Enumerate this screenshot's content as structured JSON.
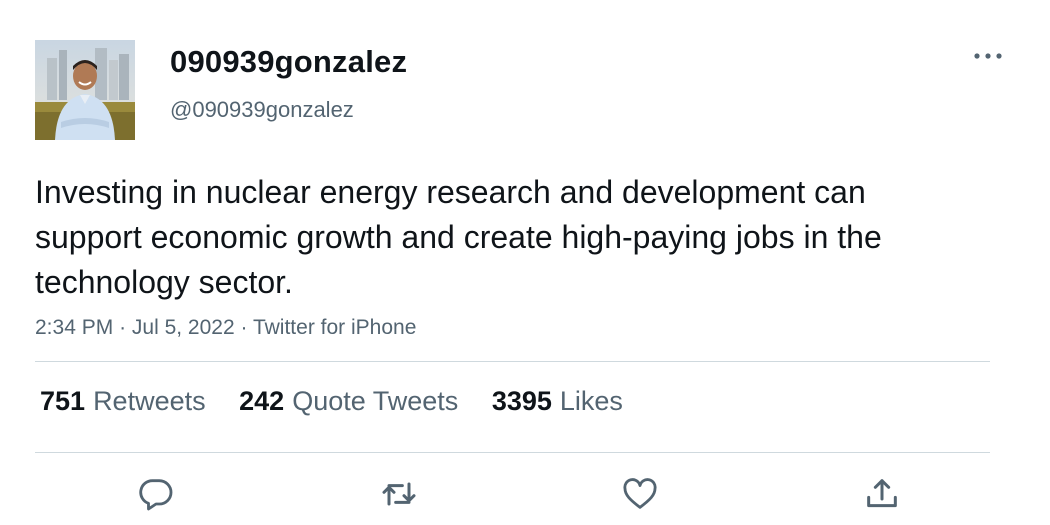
{
  "tweet": {
    "display_name": "090939gonzalez",
    "handle": "@090939gonzalez",
    "text": "Investing in nuclear energy research and development can support economic growth and create high-paying jobs in the technology sector.",
    "time": "2:34 PM",
    "date": "Jul 5, 2022",
    "source": "Twitter for iPhone",
    "separator": "·"
  },
  "stats": {
    "retweets": {
      "count": "751",
      "label": "Retweets"
    },
    "quote_tweets": {
      "count": "242",
      "label": "Quote Tweets"
    },
    "likes": {
      "count": "3395",
      "label": "Likes"
    }
  },
  "icons": {
    "more": "more-horizontal-icon",
    "reply": "reply-icon",
    "retweet": "retweet-icon",
    "like": "heart-icon",
    "share": "share-icon"
  },
  "colors": {
    "text_primary": "#0f1419",
    "text_secondary": "#536471",
    "divider": "#cfd9de"
  }
}
